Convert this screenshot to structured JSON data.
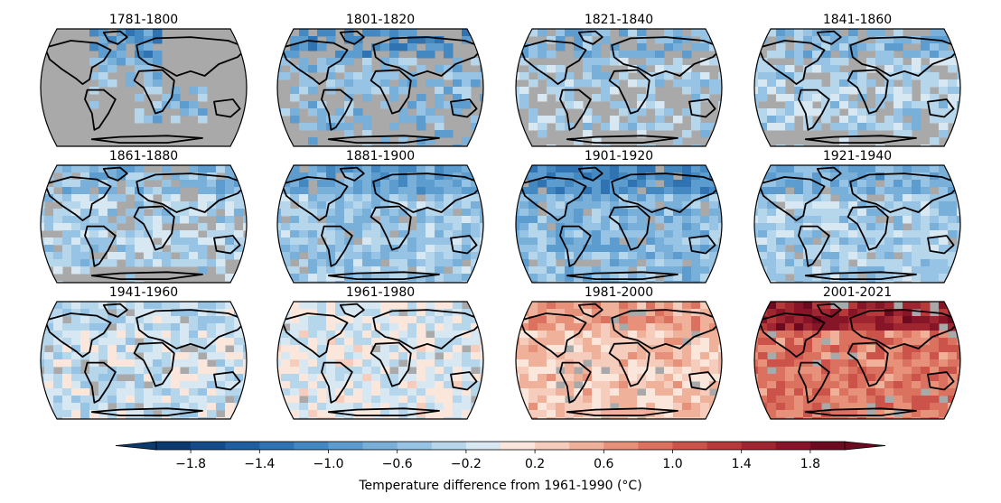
{
  "chart_data": {
    "type": "heatmap",
    "projection": "Robinson",
    "panels": [
      {
        "period": "1781-1800",
        "anomaly_c": -0.55,
        "coverage": "sparse",
        "missing_color": "#a9a9a9"
      },
      {
        "period": "1801-1820",
        "anomaly_c": -0.6,
        "coverage": "ocean-partial",
        "missing_color": "#a9a9a9"
      },
      {
        "period": "1821-1840",
        "anomaly_c": -0.35,
        "coverage": "ocean-partial",
        "missing_color": "#a9a9a9"
      },
      {
        "period": "1841-1860",
        "anomaly_c": -0.35,
        "coverage": "mostly",
        "missing_color": "#a9a9a9"
      },
      {
        "period": "1861-1880",
        "anomaly_c": -0.35,
        "coverage": "mostly",
        "missing_color": "#a9a9a9"
      },
      {
        "period": "1881-1900",
        "anomaly_c": -0.45,
        "coverage": "near-full",
        "missing_color": "#a9a9a9"
      },
      {
        "period": "1901-1920",
        "anomaly_c": -0.6,
        "coverage": "near-full",
        "missing_color": "#a9a9a9"
      },
      {
        "period": "1921-1940",
        "anomaly_c": -0.4,
        "coverage": "near-full",
        "missing_color": "#a9a9a9"
      },
      {
        "period": "1941-1960",
        "anomaly_c": -0.15,
        "coverage": "near-full",
        "missing_color": "#a9a9a9"
      },
      {
        "period": "1961-1980",
        "anomaly_c": -0.05,
        "coverage": "near-full",
        "missing_color": "#a9a9a9"
      },
      {
        "period": "1981-2000",
        "anomaly_c": 0.35,
        "coverage": "near-full",
        "missing_color": "#a9a9a9"
      },
      {
        "period": "2001-2021",
        "anomaly_c": 0.85,
        "coverage": "near-full",
        "missing_color": "#a9a9a9"
      }
    ],
    "colorbar": {
      "label": "Temperature difference from 1961-1990 (°C)",
      "min": -2.0,
      "max": 2.0,
      "step": 0.2,
      "extend": "both",
      "tick_values": [
        -1.8,
        -1.4,
        -1.0,
        -0.6,
        -0.2,
        0.2,
        0.6,
        1.0,
        1.4,
        1.8
      ],
      "tick_labels": [
        "−1.8",
        "−1.4",
        "−1.0",
        "−0.6",
        "−0.2",
        "0.2",
        "0.6",
        "1.0",
        "1.4",
        "1.8"
      ],
      "colors": [
        "#0a3a70",
        "#144c8a",
        "#1f5f9f",
        "#2f73b3",
        "#4488c2",
        "#5c9ccf",
        "#79b0da",
        "#97c3e4",
        "#b6d6ec",
        "#d8e8f3",
        "#fbe6dc",
        "#f6cdbc",
        "#f0b19a",
        "#e7917a",
        "#db715f",
        "#cc5349",
        "#b73a3b",
        "#9f2531",
        "#861528",
        "#6c0a20"
      ]
    },
    "colormap": "RdBu_r (diverging)"
  }
}
